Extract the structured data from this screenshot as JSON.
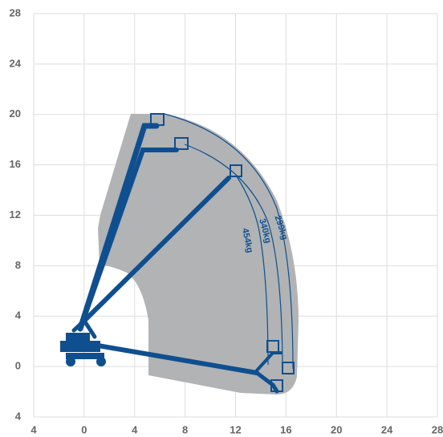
{
  "chart_data": {
    "type": "range",
    "annotations": [
      "454kg",
      "340kg",
      "299kg"
    ],
    "xlim": [
      -4,
      28
    ],
    "ylim": [
      -4,
      28
    ],
    "xticks": [
      {
        "value": -4,
        "label": "4"
      },
      0,
      4,
      8,
      12,
      16,
      20,
      24,
      28
    ],
    "yticks": [
      {
        "value": -4,
        "label": "4"
      },
      0,
      4,
      8,
      12,
      16,
      20,
      24,
      28
    ],
    "grid": true
  }
}
